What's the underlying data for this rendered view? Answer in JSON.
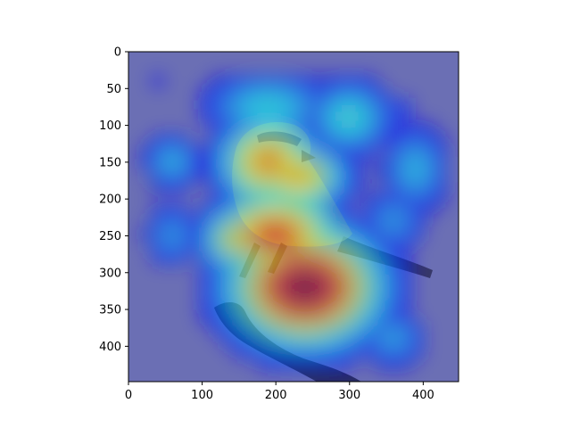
{
  "chart_data": {
    "type": "heatmap",
    "title": "",
    "xlabel": "",
    "ylabel": "",
    "xlim": [
      0,
      448
    ],
    "ylim": [
      448,
      0
    ],
    "x_ticks": [
      0,
      100,
      200,
      300,
      400
    ],
    "y_ticks": [
      0,
      50,
      100,
      150,
      200,
      250,
      300,
      350,
      400
    ],
    "grid": false,
    "colormap": "jet",
    "overlay_alpha": 0.5,
    "background_image": "bird-perched-on-branch",
    "hotspots": [
      {
        "x": 240,
        "y": 320,
        "sx": 70,
        "sy": 55,
        "v": 1.0
      },
      {
        "x": 200,
        "y": 250,
        "sx": 55,
        "sy": 40,
        "v": 0.85
      },
      {
        "x": 190,
        "y": 150,
        "sx": 45,
        "sy": 40,
        "v": 0.75
      },
      {
        "x": 230,
        "y": 170,
        "sx": 45,
        "sy": 30,
        "v": 0.7
      },
      {
        "x": 150,
        "y": 255,
        "sx": 35,
        "sy": 30,
        "v": 0.65
      },
      {
        "x": 290,
        "y": 295,
        "sx": 35,
        "sy": 40,
        "v": 0.6
      },
      {
        "x": 230,
        "y": 360,
        "sx": 40,
        "sy": 25,
        "v": 0.6
      },
      {
        "x": 190,
        "y": 75,
        "sx": 60,
        "sy": 30,
        "v": 0.4
      },
      {
        "x": 300,
        "y": 90,
        "sx": 40,
        "sy": 35,
        "v": 0.42
      },
      {
        "x": 60,
        "y": 150,
        "sx": 25,
        "sy": 25,
        "v": 0.35
      },
      {
        "x": 60,
        "y": 250,
        "sx": 25,
        "sy": 30,
        "v": 0.3
      },
      {
        "x": 390,
        "y": 160,
        "sx": 30,
        "sy": 40,
        "v": 0.35
      },
      {
        "x": 360,
        "y": 230,
        "sx": 30,
        "sy": 30,
        "v": 0.3
      },
      {
        "x": 360,
        "y": 390,
        "sx": 30,
        "sy": 25,
        "v": 0.32
      },
      {
        "x": 360,
        "y": 80,
        "sx": 25,
        "sy": 20,
        "v": 0.2
      },
      {
        "x": 45,
        "y": 45,
        "sx": 12,
        "sy": 12,
        "v": 0.15
      }
    ]
  },
  "colors": {
    "background_blue": "#6b6fb4",
    "axis": "#000000",
    "bird_body": "#b5b078",
    "bird_dark": "#2e2f5a",
    "branch": "#1f2352"
  }
}
